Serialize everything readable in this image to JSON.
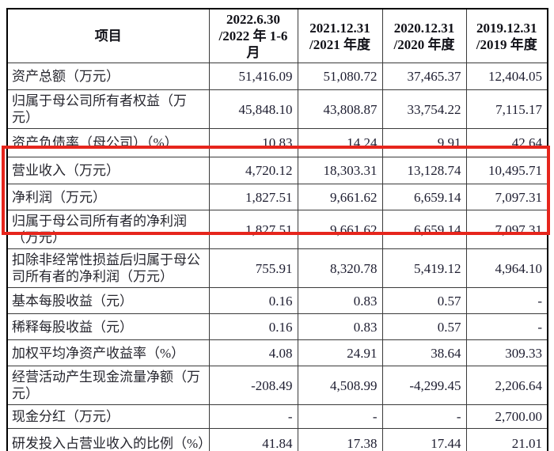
{
  "table": {
    "header": {
      "item_label": "项目",
      "periods": [
        "2022.6.30\n/2022 年 1-6\n月",
        "2021.12.31\n/2021 年度",
        "2020.12.31\n/2020 年度",
        "2019.12.31\n/2019 年度"
      ]
    },
    "rows": [
      {
        "label": "资产总额（万元）",
        "values": [
          "51,416.09",
          "51,080.72",
          "37,465.37",
          "12,404.05"
        ],
        "highlighted": false
      },
      {
        "label": "归属于母公司所有者权益（万元）",
        "values": [
          "45,848.10",
          "43,808.87",
          "33,754.22",
          "7,115.17"
        ],
        "highlighted": false
      },
      {
        "label": "资产负债率（母公司）（%）",
        "values": [
          "10.83",
          "14.24",
          "9.91",
          "42.64"
        ],
        "highlighted": false
      },
      {
        "label": "营业收入（万元）",
        "values": [
          "4,720.12",
          "18,303.31",
          "13,128.74",
          "10,495.71"
        ],
        "highlighted": true
      },
      {
        "label": "净利润（万元）",
        "values": [
          "1,827.51",
          "9,661.62",
          "6,659.14",
          "7,097.31"
        ],
        "highlighted": true
      },
      {
        "label": "归属于母公司所有者的净利润（万元）",
        "values": [
          "1,827.51",
          "9,661.62",
          "6,659.14",
          "7,097.31"
        ],
        "highlighted": true
      },
      {
        "label": "扣除非经常性损益后归属于母公司所有者的净利润（万元）",
        "values": [
          "755.91",
          "8,320.78",
          "5,419.12",
          "4,964.10"
        ],
        "highlighted": false
      },
      {
        "label": "基本每股收益（元）",
        "values": [
          "0.16",
          "0.83",
          "0.57",
          "-"
        ],
        "highlighted": false
      },
      {
        "label": "稀释每股收益（元）",
        "values": [
          "0.16",
          "0.83",
          "0.57",
          "-"
        ],
        "highlighted": false
      },
      {
        "label": "加权平均净资产收益率（%）",
        "values": [
          "4.08",
          "24.91",
          "38.64",
          "309.33"
        ],
        "highlighted": false
      },
      {
        "label": "经营活动产生现金流量净额（万元）",
        "values": [
          "-208.49",
          "4,508.99",
          "-4,299.45",
          "2,206.64"
        ],
        "highlighted": false
      },
      {
        "label": "现金分红（万元）",
        "values": [
          "-",
          "-",
          "-",
          "2,700.00"
        ],
        "highlighted": false
      },
      {
        "label": "研发投入占营业收入的比例（%）",
        "values": [
          "41.84",
          "17.38",
          "17.44",
          "21.01"
        ],
        "highlighted": false
      }
    ],
    "highlight": {
      "color": "#e6251c",
      "highlighted_row_labels": [
        "营业收入（万元）",
        "净利润（万元）",
        "归属于母公司所有者的净利润（万元）"
      ]
    }
  }
}
